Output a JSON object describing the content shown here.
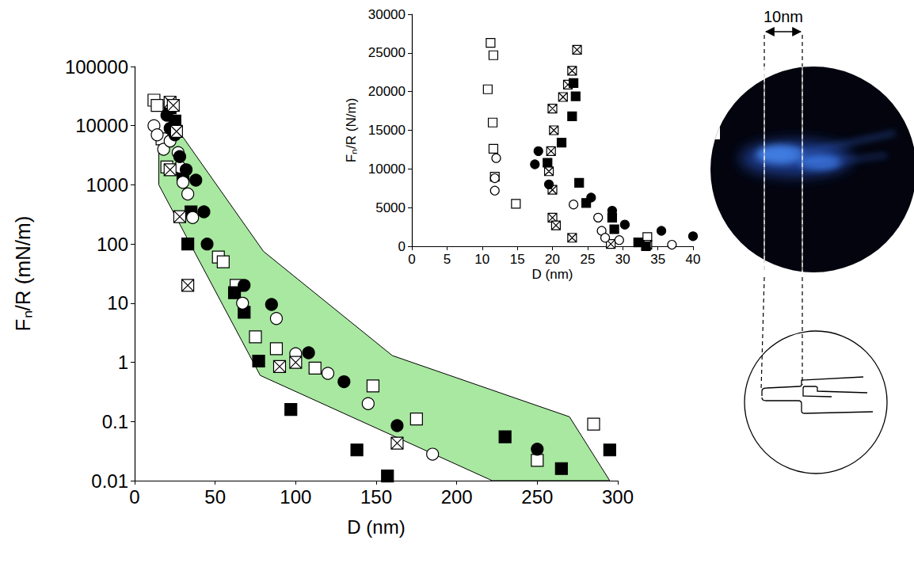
{
  "chart_data": [
    {
      "type": "scatter",
      "x_label": "D (nm)",
      "y_label": "Fₙ/R (mN/m)",
      "log": "y",
      "grid": false,
      "xlim": [
        0,
        300
      ],
      "xticks": [
        0,
        50,
        100,
        150,
        200,
        250,
        300
      ],
      "ylim": [
        0.01,
        100000
      ],
      "yticks": [
        0.01,
        0.1,
        1,
        10,
        100,
        1000,
        10000,
        100000
      ],
      "series": [
        {
          "type": "area",
          "color": "#a8e8a0",
          "values": [
            [
              15,
              5000
            ],
            [
              29,
              7000
            ],
            [
              80,
              75
            ],
            [
              160,
              1.3
            ],
            [
              270,
              0.12
            ],
            [
              295,
              0.01
            ],
            [
              222,
              0.01
            ],
            [
              78,
              0.6
            ],
            [
              15,
              1000
            ]
          ]
        },
        {
          "type": "scatter",
          "marker": "square_open",
          "color": "#000000",
          "values": [
            [
              12,
              27000
            ],
            [
              14,
              22000
            ],
            [
              17,
              6000
            ],
            [
              20,
              2000
            ],
            [
              52,
              60
            ],
            [
              55,
              50
            ],
            [
              63,
              20
            ],
            [
              75,
              2.7
            ],
            [
              88,
              1.7
            ],
            [
              112,
              0.8
            ],
            [
              148,
              0.4
            ],
            [
              175,
              0.11
            ],
            [
              250,
              0.022
            ],
            [
              285,
              0.09
            ]
          ]
        },
        {
          "type": "scatter",
          "marker": "square",
          "color": "#000000",
          "values": [
            [
              22,
              20000
            ],
            [
              25,
              12000
            ],
            [
              30,
              1500
            ],
            [
              33,
              100
            ],
            [
              35,
              350
            ],
            [
              62,
              15
            ],
            [
              68,
              7
            ],
            [
              77,
              1.05
            ],
            [
              97,
              0.16
            ],
            [
              138,
              0.033
            ],
            [
              157,
              0.012
            ],
            [
              230,
              0.055
            ],
            [
              265,
              0.016
            ],
            [
              295,
              0.033
            ]
          ]
        },
        {
          "type": "scatter",
          "marker": "circle_open",
          "color": "#000000",
          "values": [
            [
              12,
              10000
            ],
            [
              14,
              7000
            ],
            [
              18,
              4000
            ],
            [
              22,
              5500
            ],
            [
              27,
              3500
            ],
            [
              28,
              2000
            ],
            [
              30,
              1100
            ],
            [
              33,
              700
            ],
            [
              36,
              280
            ],
            [
              67,
              10
            ],
            [
              88,
              5.5
            ],
            [
              100,
              1.4
            ],
            [
              120,
              0.65
            ],
            [
              145,
              0.2
            ],
            [
              185,
              0.028
            ]
          ]
        },
        {
          "type": "scatter",
          "marker": "circle",
          "color": "#000000",
          "values": [
            [
              20,
              15000
            ],
            [
              22,
              9000
            ],
            [
              25,
              7000
            ],
            [
              28,
              3000
            ],
            [
              32,
              1800
            ],
            [
              38,
              1200
            ],
            [
              43,
              350
            ],
            [
              45,
              100
            ],
            [
              68,
              20
            ],
            [
              85,
              9.5
            ],
            [
              108,
              1.45
            ],
            [
              130,
              0.47
            ],
            [
              163,
              0.085
            ],
            [
              250,
              0.034
            ]
          ]
        },
        {
          "type": "scatter",
          "marker": "square_crossed",
          "color": "#000000",
          "values": [
            [
              22,
              25000
            ],
            [
              24,
              22000
            ],
            [
              26,
              8000
            ],
            [
              22,
              1800
            ],
            [
              28,
              290
            ],
            [
              33,
              20
            ],
            [
              90,
              0.85
            ],
            [
              100,
              1.0
            ],
            [
              163,
              0.043
            ]
          ]
        }
      ]
    },
    {
      "type": "scatter",
      "x_label": "D (nm)",
      "y_label": "Fₙ/R (N/m)",
      "grid": false,
      "xlim": [
        0,
        40
      ],
      "xticks": [
        0,
        5,
        10,
        15,
        20,
        25,
        30,
        35,
        40
      ],
      "ylim": [
        0,
        30000
      ],
      "yticks": [
        0,
        5000,
        10000,
        15000,
        20000,
        25000,
        30000
      ],
      "series": [
        {
          "type": "scatter",
          "marker": "square_open",
          "color": "#000000",
          "values": [
            [
              11.2,
              26300
            ],
            [
              11.6,
              24700
            ],
            [
              10.8,
              20300
            ],
            [
              11.5,
              16000
            ],
            [
              11.6,
              12600
            ],
            [
              11.8,
              9000
            ],
            [
              14.8,
              5500
            ],
            [
              33.5,
              1200
            ]
          ]
        },
        {
          "type": "scatter",
          "marker": "square_crossed",
          "color": "#000000",
          "values": [
            [
              23.5,
              25400
            ],
            [
              22.8,
              22700
            ],
            [
              22.2,
              20900
            ],
            [
              21.5,
              19300
            ],
            [
              20,
              17800
            ],
            [
              20.2,
              15000
            ],
            [
              19.8,
              12300
            ],
            [
              19.5,
              9700
            ],
            [
              20,
              7300
            ],
            [
              20,
              3700
            ],
            [
              20.5,
              2700
            ],
            [
              22.8,
              1100
            ],
            [
              28.3,
              300
            ],
            [
              33.5,
              200
            ]
          ]
        },
        {
          "type": "scatter",
          "marker": "square",
          "color": "#000000",
          "values": [
            [
              23,
              21100
            ],
            [
              23.3,
              19400
            ],
            [
              22.8,
              16800
            ],
            [
              21.3,
              13400
            ],
            [
              19.3,
              10800
            ],
            [
              23.8,
              8200
            ],
            [
              24.8,
              5600
            ],
            [
              28.5,
              3700
            ],
            [
              28.8,
              2200
            ],
            [
              32.2,
              500
            ],
            [
              33.3,
              0
            ]
          ]
        },
        {
          "type": "scatter",
          "marker": "circle",
          "color": "#000000",
          "values": [
            [
              17.5,
              10600
            ],
            [
              18,
              12300
            ],
            [
              19.5,
              8000
            ],
            [
              25.5,
              6300
            ],
            [
              28.5,
              4600
            ],
            [
              30.3,
              2800
            ],
            [
              35.5,
              2000
            ],
            [
              40,
              1300
            ]
          ]
        },
        {
          "type": "scatter",
          "marker": "circle_open",
          "color": "#000000",
          "values": [
            [
              12,
              11400
            ],
            [
              11.8,
              8800
            ],
            [
              11.8,
              7200
            ],
            [
              23,
              5400
            ],
            [
              26.5,
              3700
            ],
            [
              27,
              2000
            ],
            [
              27.5,
              1100
            ],
            [
              29.5,
              800
            ],
            [
              37,
              200
            ]
          ]
        }
      ]
    }
  ],
  "image": {
    "scale_label": "10nm"
  }
}
